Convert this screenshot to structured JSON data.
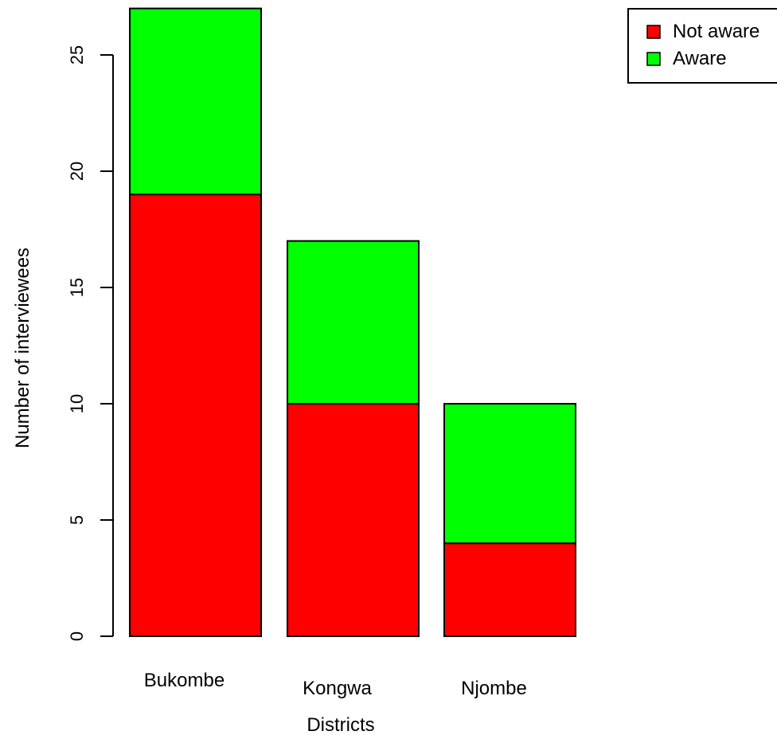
{
  "chart_data": {
    "type": "bar",
    "stacked": true,
    "title": "",
    "xlabel": "Districts",
    "ylabel": "Number of interviewees",
    "categories": [
      "Bukombe",
      "Kongwa",
      "Njombe"
    ],
    "series": [
      {
        "name": "Not aware",
        "values": [
          19,
          10,
          4
        ],
        "color": "#ff0000"
      },
      {
        "name": "Aware",
        "values": [
          8,
          7,
          6
        ],
        "color": "#00ff00"
      }
    ],
    "ylim": [
      0,
      27
    ],
    "yticks": [
      0,
      5,
      10,
      15,
      20,
      25
    ],
    "legend": {
      "position": "top-right"
    },
    "grid": false
  }
}
